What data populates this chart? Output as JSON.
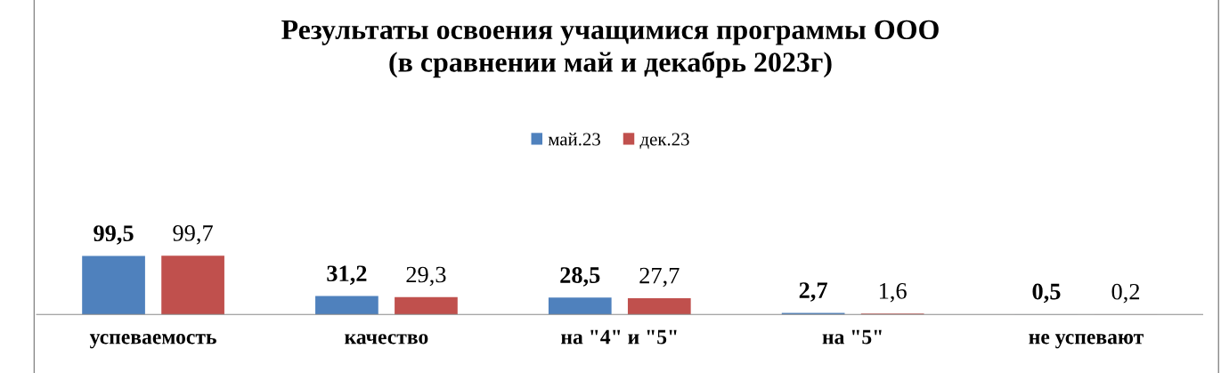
{
  "chart_data": {
    "type": "bar",
    "title": "Результаты освоения учащимися программы ООО\n(в сравнении май и декабрь 2023г)",
    "categories": [
      "успеваемость",
      "качество",
      "на \"4\" и \"5\"",
      "на \"5\"",
      "не успевают"
    ],
    "series": [
      {
        "name": "май.23",
        "color": "#4f81bd",
        "values": [
          99.5,
          31.2,
          28.5,
          2.7,
          0.5
        ],
        "value_labels": [
          "99,5",
          "31,2",
          "28,5",
          "2,7",
          "0,5"
        ]
      },
      {
        "name": "дек.23",
        "color": "#c0504d",
        "values": [
          99.7,
          29.3,
          27.7,
          1.6,
          0.2
        ],
        "value_labels": [
          "99,7",
          "29,3",
          "27,7",
          "1,6",
          "0,2"
        ]
      }
    ],
    "legend": "top",
    "grid": false
  }
}
